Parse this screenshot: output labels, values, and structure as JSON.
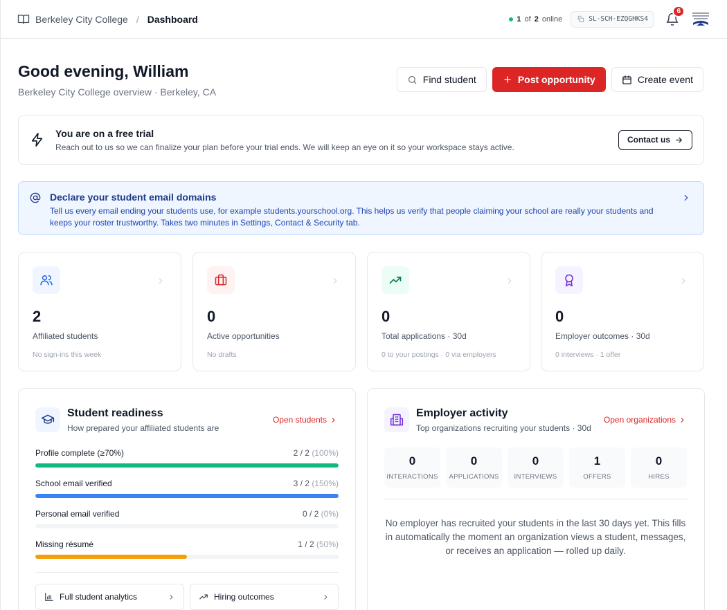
{
  "breadcrumb": {
    "school": "Berkeley City College",
    "separator": "/",
    "current": "Dashboard"
  },
  "presence": {
    "count": "1",
    "of": "of",
    "total": "2",
    "label": "online"
  },
  "school_code": "SL-SCH-EZQGHKS4",
  "notifications": {
    "count": "6"
  },
  "header": {
    "greeting": "Good evening, William",
    "subtitle": "Berkeley City College overview · Berkeley, CA"
  },
  "actions": {
    "find_student": "Find student",
    "post_opportunity": "Post opportunity",
    "create_event": "Create event"
  },
  "trial": {
    "title": "You are on a free trial",
    "description": "Reach out to us so we can finalize your plan before your trial ends. We will keep an eye on it so your workspace stays active.",
    "button": "Contact us"
  },
  "domains_banner": {
    "title": "Declare your student email domains",
    "description": "Tell us every email ending your students use, for example students.yourschool.org. This helps us verify that people claiming your school are really your students and keeps your roster trustworthy. Takes two minutes in Settings, Contact & Security tab."
  },
  "stats": [
    {
      "value": "2",
      "label": "Affiliated students",
      "sub": "No sign-ins this week",
      "icon": "users-icon"
    },
    {
      "value": "0",
      "label": "Active opportunities",
      "sub": "No drafts",
      "icon": "briefcase-icon"
    },
    {
      "value": "0",
      "label": "Total applications · 30d",
      "sub": "0 to your postings · 0 via employers",
      "icon": "trending-up-icon"
    },
    {
      "value": "0",
      "label": "Employer outcomes · 30d",
      "sub": "0 interviews · 1 offer",
      "icon": "award-icon"
    }
  ],
  "readiness": {
    "title": "Student readiness",
    "subtitle": "How prepared your affiliated students are",
    "link": "Open students",
    "metrics": [
      {
        "label": "Profile complete (≥70%)",
        "count": "2 / 2",
        "percent": "(100%)",
        "fill": 1.0,
        "color": "#10b981"
      },
      {
        "label": "School email verified",
        "count": "3 / 2",
        "percent": "(150%)",
        "fill": 1.0,
        "color": "#3b82f6"
      },
      {
        "label": "Personal email verified",
        "count": "0 / 2",
        "percent": "(0%)",
        "fill": 0.0,
        "color": "#9ca3af"
      },
      {
        "label": "Missing résumé",
        "count": "1 / 2",
        "percent": "(50%)",
        "fill": 0.5,
        "color": "#f59e0b"
      }
    ],
    "buttons": {
      "analytics": "Full student analytics",
      "outcomes": "Hiring outcomes"
    }
  },
  "employer": {
    "title": "Employer activity",
    "subtitle": "Top organizations recruiting your students · 30d",
    "link": "Open organizations",
    "kpis": [
      {
        "value": "0",
        "label": "INTERACTIONS"
      },
      {
        "value": "0",
        "label": "APPLICATIONS"
      },
      {
        "value": "0",
        "label": "INTERVIEWS"
      },
      {
        "value": "1",
        "label": "OFFERS"
      },
      {
        "value": "0",
        "label": "HIRES"
      }
    ],
    "empty": "No employer has recruited your students in the last 30 days yet. This fills in automatically the moment an organization views a student, messages, or receives an application — rolled up daily."
  },
  "colors": {
    "accent": "#dc2626",
    "info_bg": "#eff6ff",
    "info_text": "#1e3a8a"
  }
}
